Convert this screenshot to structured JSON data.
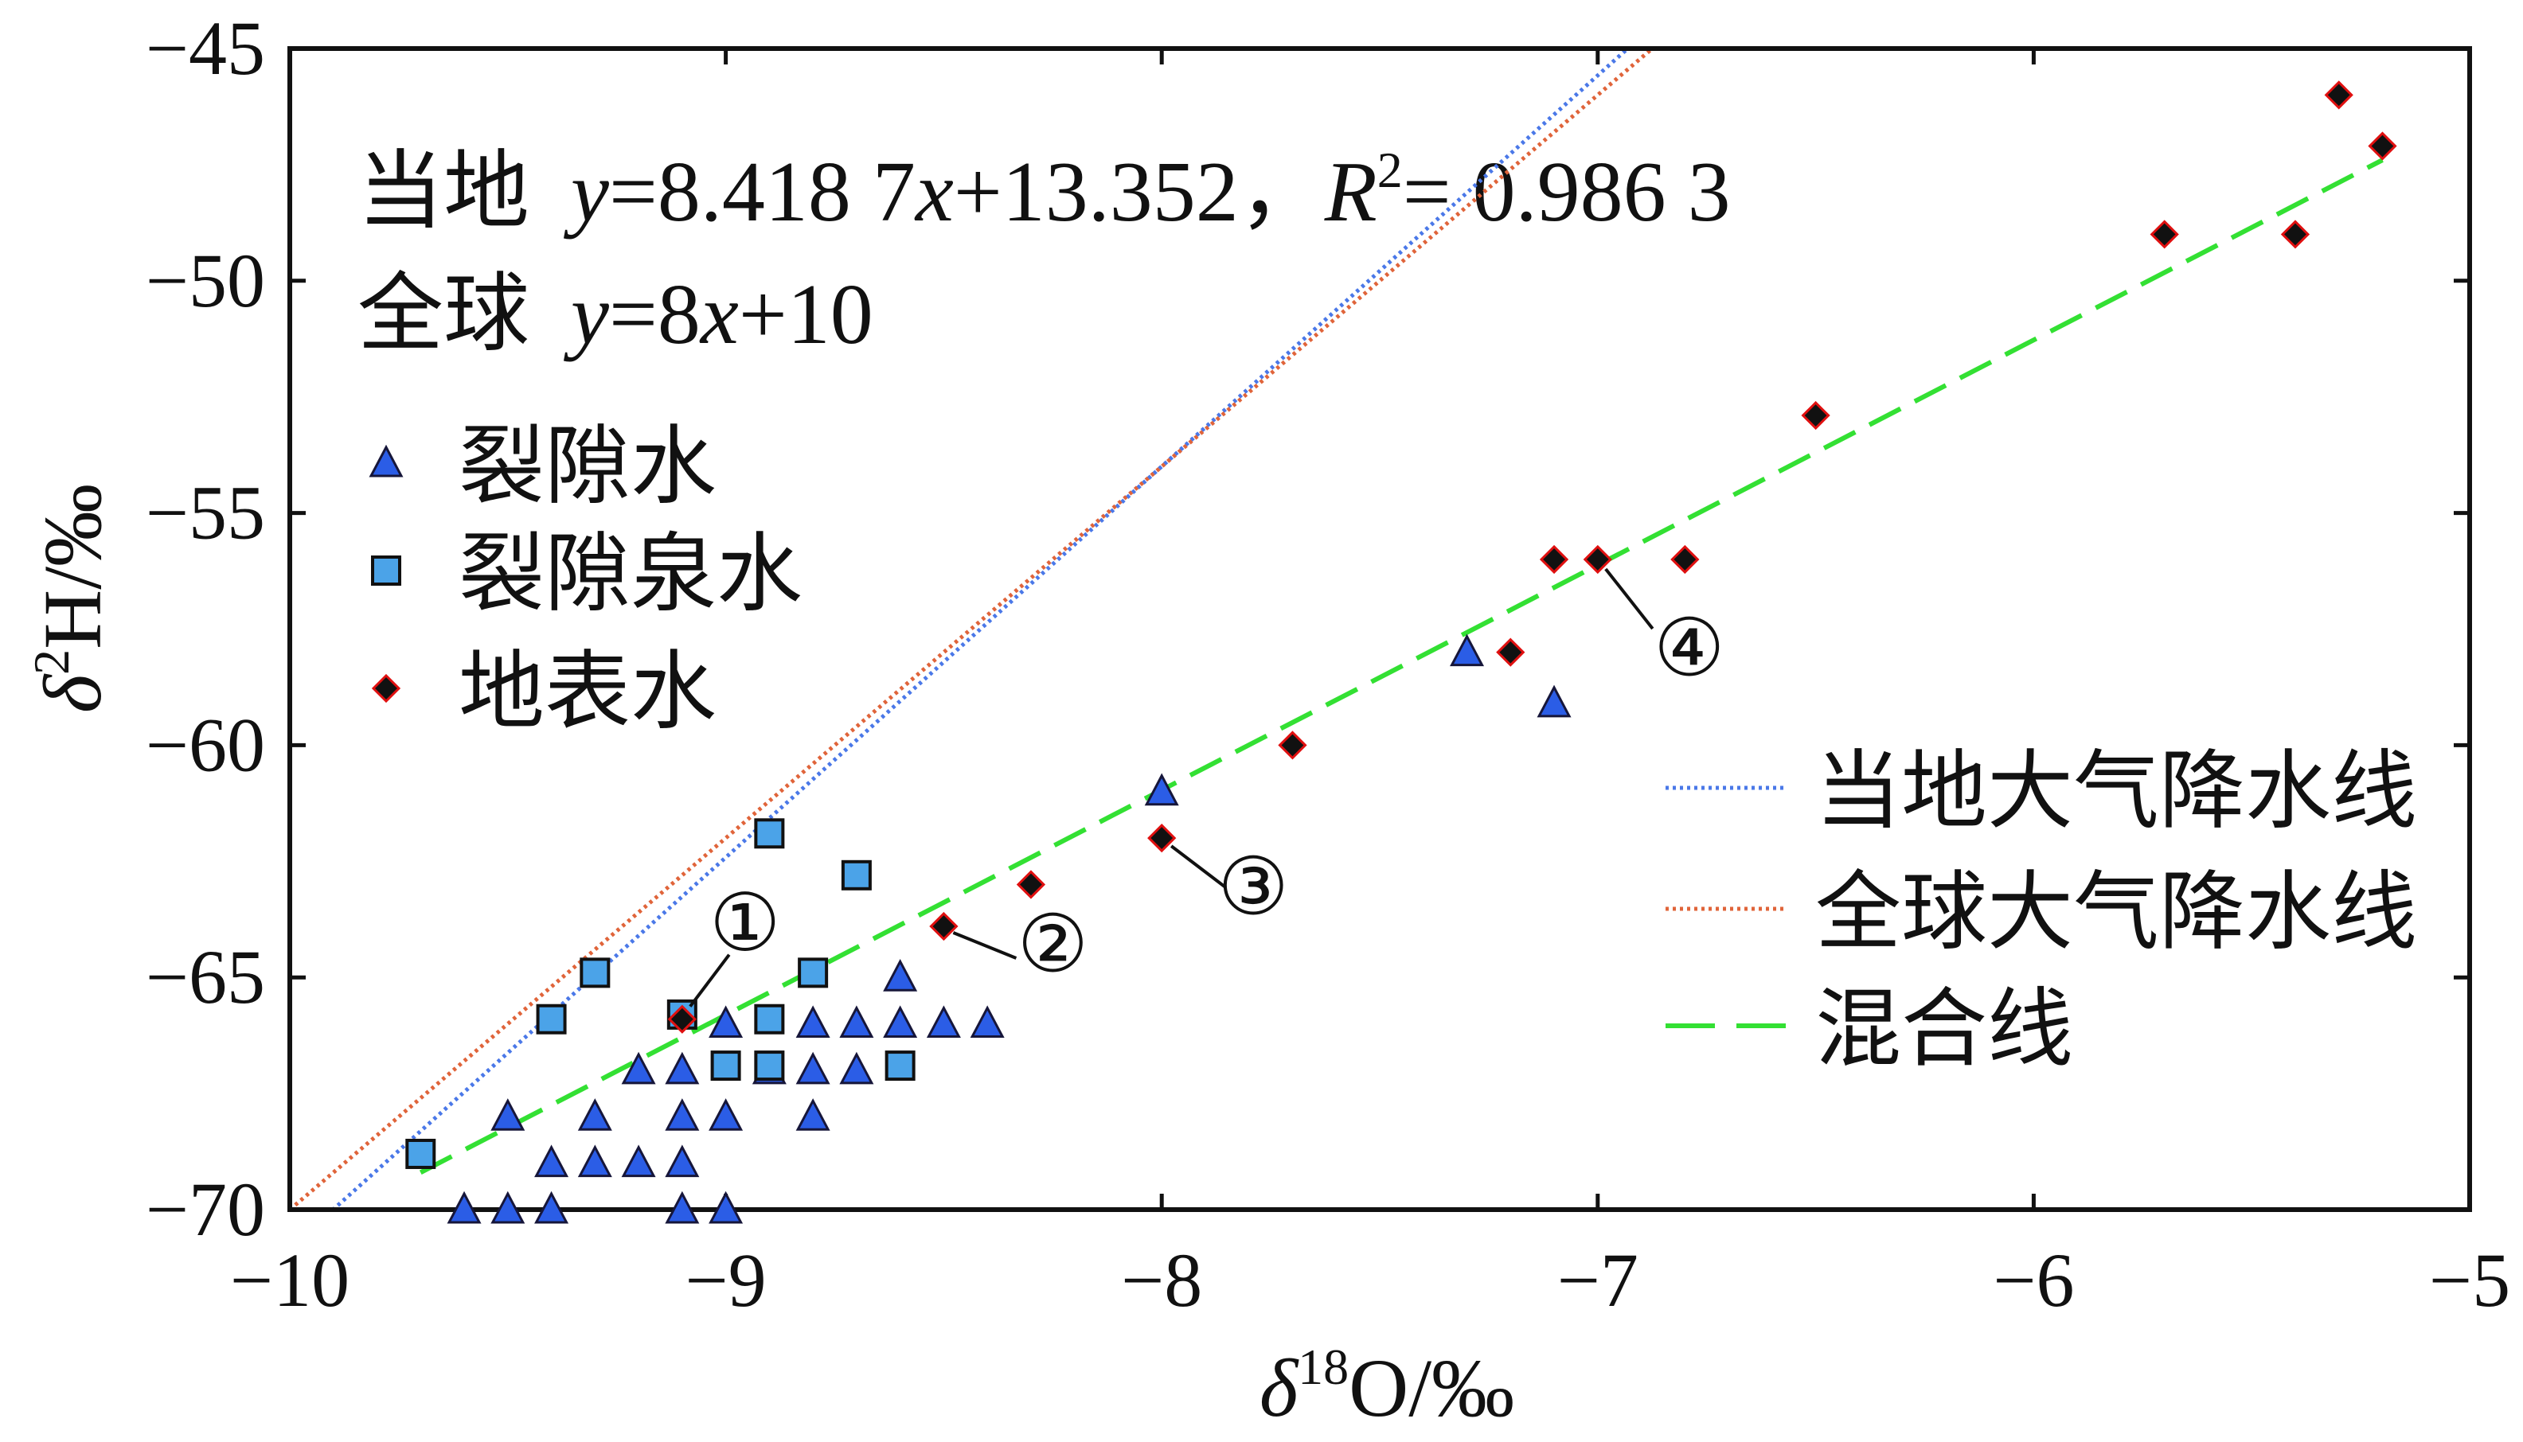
{
  "chart_data": {
    "type": "scatter",
    "xlabel": {
      "symbol": "δ",
      "sup": "18",
      "text": "O/‰"
    },
    "ylabel": {
      "symbol": "δ",
      "sup": "2",
      "text": "H/‰"
    },
    "xlim": [
      -10,
      -5
    ],
    "ylim": [
      -70,
      -45
    ],
    "xticks": [
      -10,
      -9,
      -8,
      -7,
      -6,
      -5
    ],
    "xtick_labels": [
      "−10",
      "−9",
      "−8",
      "−7",
      "−6",
      "−5"
    ],
    "yticks": [
      -45,
      -50,
      -55,
      -60,
      -65,
      -70
    ],
    "ytick_labels": [
      "−45",
      "−50",
      "−55",
      "−60",
      "−65",
      "−70"
    ],
    "grid": false,
    "legend_placement": {
      "points": "top-left",
      "lines": "right"
    },
    "series": [
      {
        "name": "裂隙水",
        "marker": "triangle",
        "color": "#2b5de6",
        "edge": "#16163a",
        "points": [
          [
            -8.0,
            -61.0
          ],
          [
            -7.3,
            -58.0
          ],
          [
            -7.1,
            -59.1
          ],
          [
            -8.6,
            -65.0
          ],
          [
            -9.0,
            -66.0
          ],
          [
            -8.8,
            -66.0
          ],
          [
            -8.7,
            -66.0
          ],
          [
            -8.6,
            -66.0
          ],
          [
            -8.5,
            -66.0
          ],
          [
            -8.4,
            -66.0
          ],
          [
            -9.2,
            -67.0
          ],
          [
            -9.1,
            -67.0
          ],
          [
            -8.9,
            -67.0
          ],
          [
            -8.8,
            -67.0
          ],
          [
            -8.7,
            -67.0
          ],
          [
            -9.5,
            -68.0
          ],
          [
            -9.3,
            -68.0
          ],
          [
            -9.1,
            -68.0
          ],
          [
            -9.0,
            -68.0
          ],
          [
            -8.8,
            -68.0
          ],
          [
            -9.4,
            -69.0
          ],
          [
            -9.3,
            -69.0
          ],
          [
            -9.2,
            -69.0
          ],
          [
            -9.1,
            -69.0
          ],
          [
            -9.6,
            -70.0
          ],
          [
            -9.5,
            -70.0
          ],
          [
            -9.4,
            -70.0
          ],
          [
            -9.1,
            -70.0
          ],
          [
            -9.0,
            -70.0
          ]
        ]
      },
      {
        "name": "裂隙泉水",
        "marker": "square",
        "color": "#4ba3e8",
        "edge": "#111111",
        "points": [
          [
            -8.9,
            -61.9
          ],
          [
            -8.7,
            -62.8
          ],
          [
            -9.3,
            -64.9
          ],
          [
            -8.8,
            -64.9
          ],
          [
            -9.4,
            -65.9
          ],
          [
            -9.1,
            -65.8
          ],
          [
            -8.9,
            -65.9
          ],
          [
            -9.0,
            -66.9
          ],
          [
            -8.9,
            -66.9
          ],
          [
            -8.6,
            -66.9
          ],
          [
            -9.7,
            -68.8
          ]
        ]
      },
      {
        "name": "地表水",
        "marker": "diamond",
        "color": "#111111",
        "edge": "#e01010",
        "points": [
          [
            -5.3,
            -46.0
          ],
          [
            -5.2,
            -47.1
          ],
          [
            -5.7,
            -49.0
          ],
          [
            -5.4,
            -49.0
          ],
          [
            -6.5,
            -52.9
          ],
          [
            -7.1,
            -56.0
          ],
          [
            -7.0,
            -56.0
          ],
          [
            -6.8,
            -56.0
          ],
          [
            -7.2,
            -58.0
          ],
          [
            -7.7,
            -60.0
          ],
          [
            -8.0,
            -62.0
          ],
          [
            -8.3,
            -63.0
          ],
          [
            -8.5,
            -63.9
          ],
          [
            -9.1,
            -65.9
          ]
        ]
      }
    ],
    "lines": [
      {
        "name": "当地大气降水线",
        "style": "dotted",
        "color": "#4a78e8",
        "slope": 8.4187,
        "intercept": 13.352
      },
      {
        "name": "全球大气降水线",
        "style": "dotted",
        "color": "#e0643a",
        "slope": 8,
        "intercept": 10
      },
      {
        "name": "混合线",
        "style": "dashed",
        "color": "#33e033",
        "x": [
          -9.7,
          -5.2
        ],
        "y": [
          -69.2,
          -47.4
        ]
      }
    ],
    "equations": [
      {
        "label": "当地",
        "runs": [
          "y",
          "=8.418 7",
          "x",
          "+13.352，",
          "R",
          "2",
          "= 0.986 3"
        ]
      },
      {
        "label": "全球",
        "runs": [
          "y",
          "=8",
          "x",
          "+10"
        ]
      }
    ],
    "annotations": [
      {
        "text": "①",
        "x": -9.1,
        "y": -65.9
      },
      {
        "text": "②",
        "x": -8.5,
        "y": -63.9
      },
      {
        "text": "③",
        "x": -8.0,
        "y": -62.0
      },
      {
        "text": "④",
        "x": -7.0,
        "y": -56.0
      }
    ]
  }
}
